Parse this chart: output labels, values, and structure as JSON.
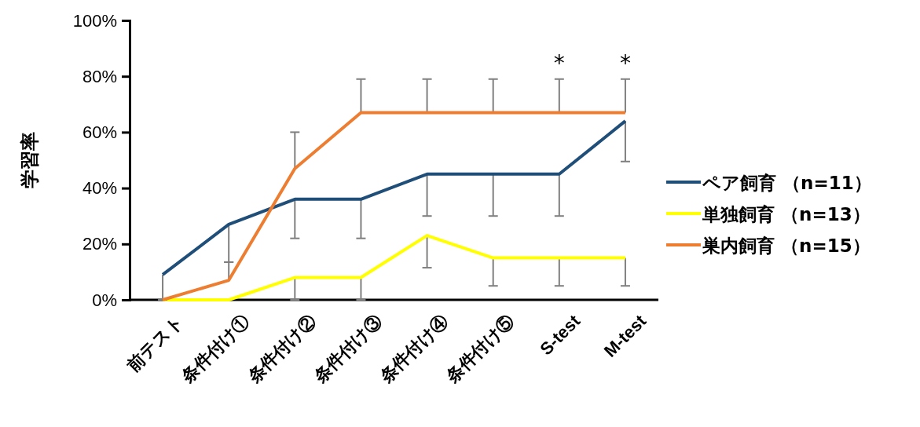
{
  "chart_data": {
    "type": "line",
    "ylabel": "学習率",
    "categories": [
      "前テスト",
      "条件付け①",
      "条件付け②",
      "条件付け③",
      "条件付け④",
      "条件付け⑤",
      "S-test",
      "M-test"
    ],
    "series": [
      {
        "name": "ペア飼育 （n=11）",
        "color": "#1f4e79",
        "values": [
          9,
          27,
          36,
          36,
          45,
          45,
          45,
          64
        ],
        "errors": [
          [
            0,
            9
          ],
          [
            13.5,
            27
          ],
          [
            22,
            36
          ],
          [
            22,
            36
          ],
          [
            30,
            45
          ],
          [
            30,
            45
          ],
          [
            30,
            45
          ],
          [
            49.5,
            64
          ]
        ]
      },
      {
        "name": "単独飼育 （n=13）",
        "color": "#ffff00",
        "values": [
          0,
          0,
          8,
          8,
          23,
          15,
          15,
          15
        ],
        "errors": [
          null,
          null,
          [
            0,
            8
          ],
          [
            0,
            8
          ],
          [
            11.5,
            23
          ],
          [
            5,
            15
          ],
          [
            5,
            15
          ],
          [
            5,
            15
          ]
        ]
      },
      {
        "name": "巣内飼育 （n=15）",
        "color": "#ed7d31",
        "values": [
          0,
          7,
          47,
          67,
          67,
          67,
          67,
          67
        ],
        "errors": [
          null,
          [
            7,
            13.5
          ],
          [
            47,
            60
          ],
          [
            67,
            79
          ],
          [
            67,
            79
          ],
          [
            67,
            79
          ],
          [
            67,
            79
          ],
          [
            67,
            79
          ]
        ]
      }
    ],
    "ylim": [
      0,
      100
    ],
    "yticks": [
      {
        "value": 0,
        "label": "0%"
      },
      {
        "value": 20,
        "label": "20%"
      },
      {
        "value": 40,
        "label": "40%"
      },
      {
        "value": 60,
        "label": "60%"
      },
      {
        "value": 80,
        "label": "80%"
      },
      {
        "value": 100,
        "label": "100%"
      }
    ],
    "annotations": [
      "*",
      "*"
    ],
    "legend": "right",
    "grid": false,
    "marker": "none",
    "line_style": "solid"
  }
}
